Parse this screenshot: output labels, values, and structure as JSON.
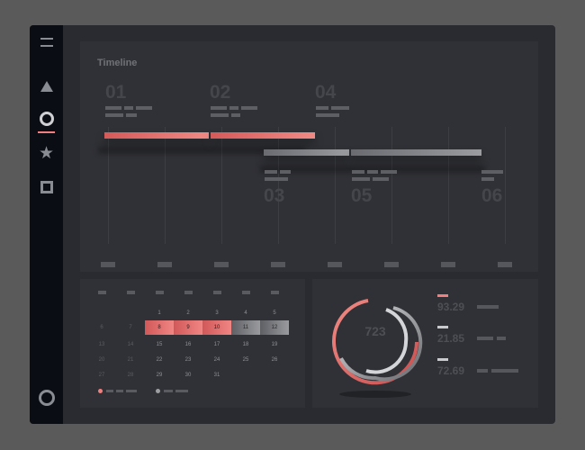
{
  "timeline": {
    "title": "Timeline",
    "top_milestones": [
      "01",
      "02",
      "04"
    ],
    "bottom_milestones": [
      "03",
      "05",
      "06"
    ]
  },
  "calendar": {
    "rows": [
      [
        "",
        "",
        "",
        "1",
        "2",
        "3",
        "4",
        "5"
      ],
      [
        "6",
        "7",
        "8",
        "9",
        "10",
        "11",
        "12"
      ],
      [
        "13",
        "14",
        "15",
        "16",
        "17",
        "18",
        "19"
      ],
      [
        "20",
        "21",
        "22",
        "23",
        "24",
        "25",
        "26"
      ],
      [
        "27",
        "28",
        "29",
        "30",
        "31"
      ]
    ],
    "selected_red": [
      "8",
      "9",
      "10"
    ],
    "selected_grey": [
      "11",
      "12"
    ]
  },
  "stats": {
    "donut_value": "723",
    "items": [
      {
        "value": "93.29",
        "color": "#f08080"
      },
      {
        "value": "21.85",
        "color": "#c9cacd"
      },
      {
        "value": "72.69",
        "color": "#c9cacd"
      }
    ]
  },
  "sidebar": {
    "icons": [
      "menu-icon",
      "triangle-icon",
      "circle-icon",
      "star-icon",
      "square-icon",
      "hexagon-icon"
    ]
  }
}
